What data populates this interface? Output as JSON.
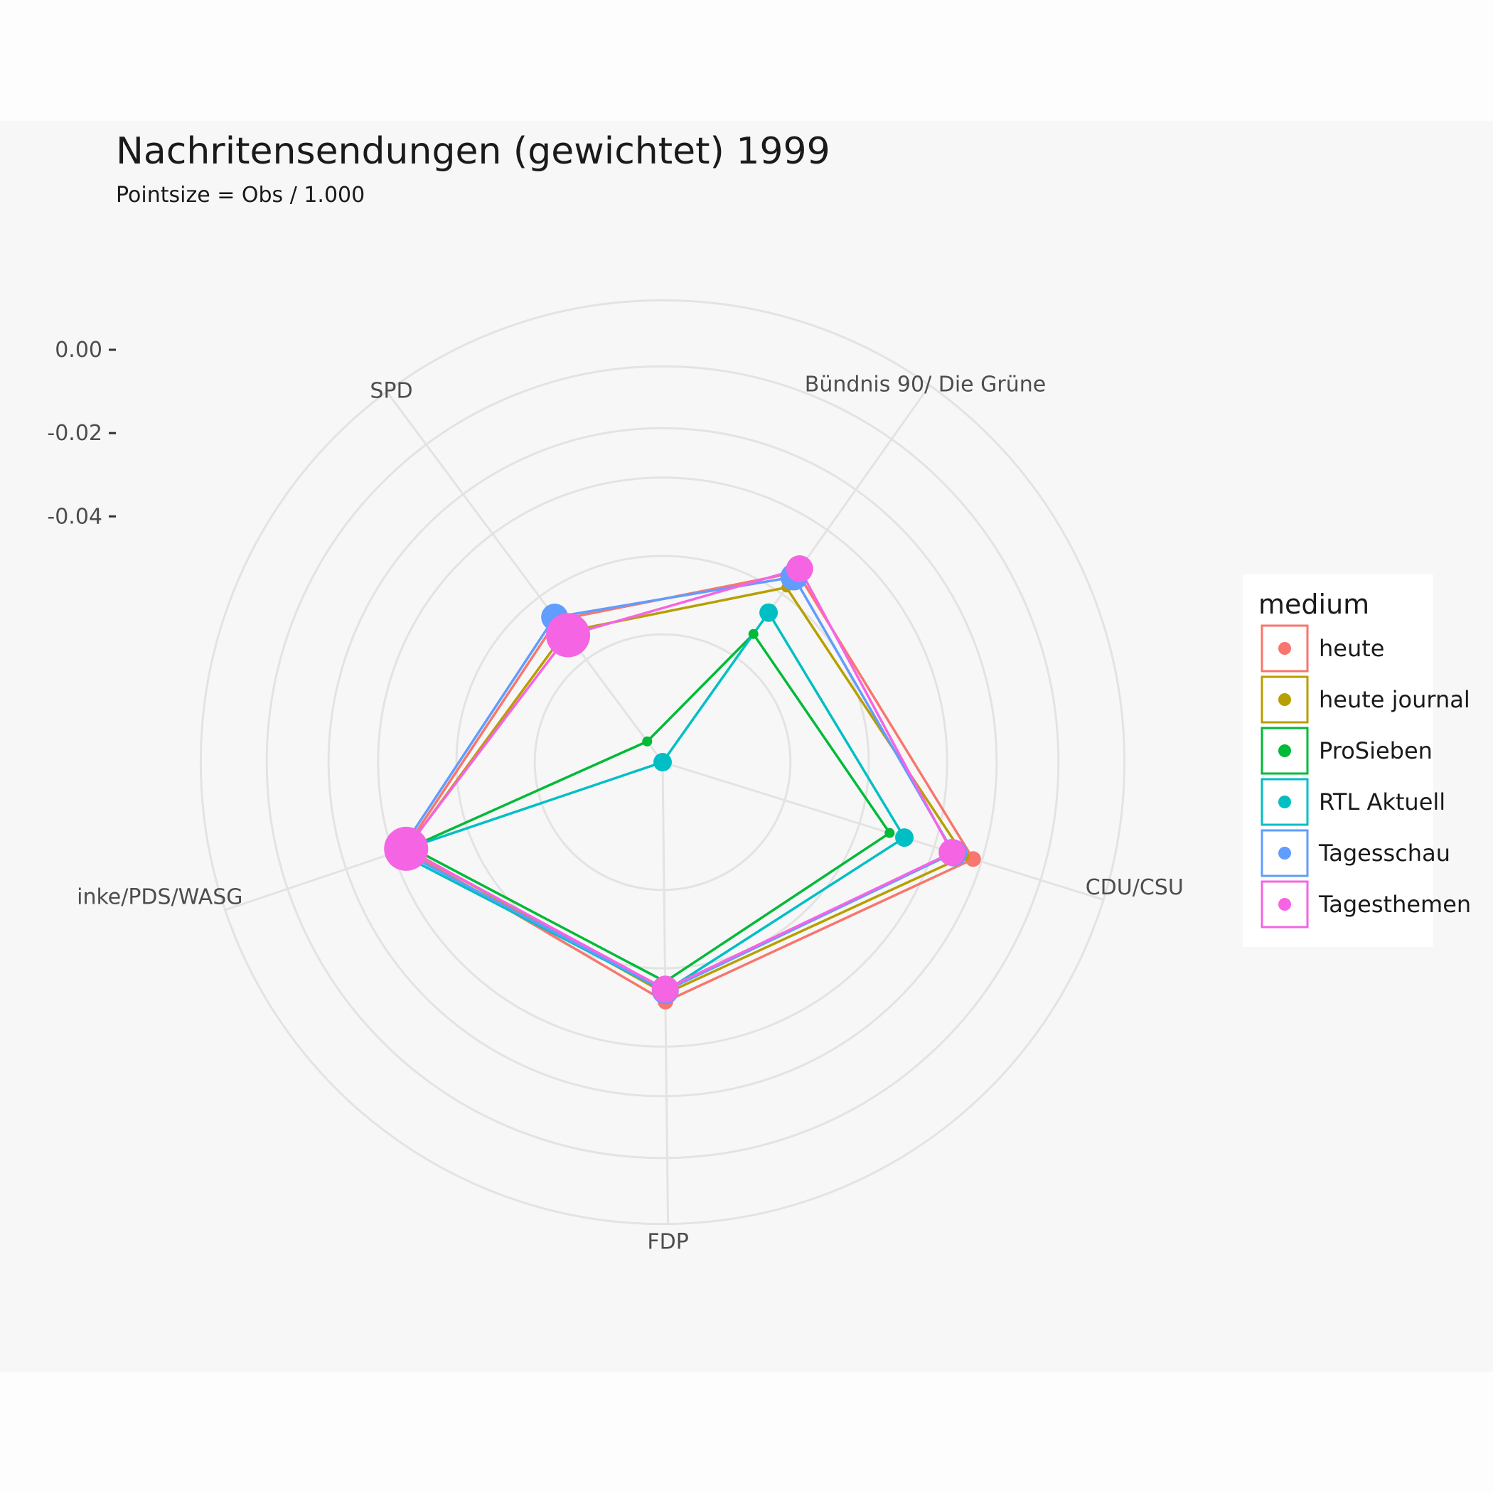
{
  "chart_data": {
    "type": "radar",
    "title": "Nachritensendungen (gewichtet) 1999",
    "subtitle": "Pointsize = Obs / 1.000",
    "axes": [
      "SPD",
      "Bündnis 90/ Die Grüne",
      "CDU/CSU",
      "FDP",
      "inke/PDS/WASG"
    ],
    "r_ticks": [
      "0.00",
      "-0.02",
      "-0.04"
    ],
    "r_tick_values": [
      0.0,
      -0.02,
      -0.04
    ],
    "r_range": [
      -0.099,
      0.0
    ],
    "grid": true,
    "legend_position": "right",
    "legend_title": "medium",
    "series": [
      {
        "name": "heute",
        "color": "#F8766D",
        "values": [
          -0.0565,
          -0.0431,
          -0.0209,
          -0.0415,
          -0.0337
        ],
        "sizes": [
          1.5,
          1.5,
          1.5,
          1.5,
          1.5
        ]
      },
      {
        "name": "heute journal",
        "color": "#B79F00",
        "values": [
          -0.06,
          -0.0476,
          -0.0231,
          -0.0434,
          -0.0342
        ],
        "sizes": [
          0.5,
          0.5,
          0.5,
          0.5,
          0.5
        ]
      },
      {
        "name": "ProSieben",
        "color": "#00BA38",
        "values": [
          -0.0928,
          -0.0613,
          -0.0419,
          -0.0463,
          -0.0351
        ],
        "sizes": [
          0.5,
          0.5,
          0.5,
          0.5,
          0.5
        ]
      },
      {
        "name": "RTL Aktuell",
        "color": "#00BFC4",
        "values": [
          -0.099,
          -0.055,
          -0.0382,
          -0.044,
          -0.0316
        ],
        "sizes": [
          2.0,
          2.0,
          2.0,
          2.0,
          2.0
        ]
      },
      {
        "name": "Tagesschau",
        "color": "#619CFF",
        "values": [
          -0.0556,
          -0.0445,
          -0.0258,
          -0.0441,
          -0.0326
        ],
        "sizes": [
          3.5,
          3.5,
          3.5,
          3.5,
          3.5
        ]
      },
      {
        "name": "Tagesthemen",
        "color": "#F564E3",
        "values": [
          -0.061,
          -0.0421,
          -0.0262,
          -0.0445,
          -0.034
        ],
        "sizes": [
          6.5,
          3.5,
          3.5,
          3.5,
          6.5
        ]
      }
    ]
  }
}
